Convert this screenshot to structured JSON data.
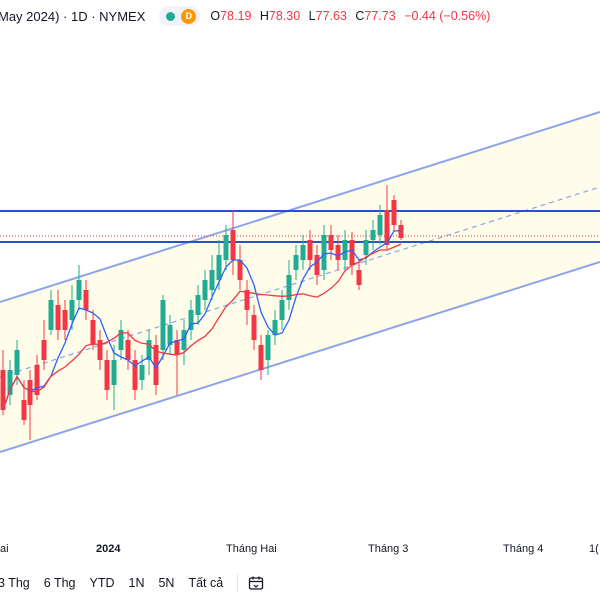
{
  "header": {
    "title": "May 2024) · 1D · NYMEX",
    "ohlc": {
      "o_label": "O",
      "o_value": "78.19",
      "h_label": "H",
      "h_value": "78.30",
      "l_label": "L",
      "l_value": "77.63",
      "c_label": "C",
      "c_value": "77.73",
      "change": "−0.44 (−0.56%)"
    },
    "status_icon": "market-open-dot",
    "delayed_badge": "D"
  },
  "xaxis": {
    "labels": [
      "ai",
      "2024",
      "Tháng Hai",
      "Tháng 3",
      "Tháng 4",
      "1("
    ]
  },
  "toolbar": {
    "ranges": [
      "3 Thg",
      "6 Thg",
      "YTD",
      "1N",
      "5N",
      "Tất cả"
    ],
    "calendar_icon": "calendar-range-icon"
  },
  "colors": {
    "up": "#22ab94",
    "down": "#f23645",
    "ma_fast": "#2962ff",
    "ma_slow": "#f23645",
    "channel": "#8ca4ea",
    "hline": "#2a4fc8"
  }
}
